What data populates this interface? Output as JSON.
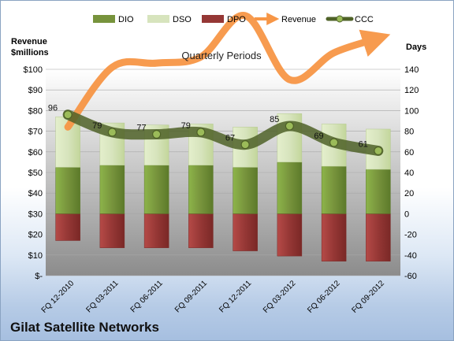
{
  "footer": {
    "company": "Gilat Satellite Networks"
  },
  "chart_data": {
    "type": "bar",
    "title": "Quarterly Periods",
    "left_axis_label": [
      "Revenue",
      "$millions"
    ],
    "right_axis_label": "Days",
    "left_ticks": [
      "$-",
      "$10",
      "$20",
      "$30",
      "$40",
      "$50",
      "$60",
      "$70",
      "$80",
      "$90",
      "$100"
    ],
    "left_ylim": [
      0,
      100
    ],
    "right_ylim": [
      -60,
      140
    ],
    "right_ticks": [
      "-60",
      "-40",
      "-20",
      "0",
      "20",
      "40",
      "60",
      "80",
      "100",
      "120",
      "140"
    ],
    "categories": [
      "FQ 12-2010",
      "FQ 03-2011",
      "FQ 06-2011",
      "FQ 09-2011",
      "FQ 12-2011",
      "FQ 03-2012",
      "FQ 06-2012",
      "FQ 09-2012"
    ],
    "legend_position": "top",
    "colors": {
      "DIO": "#77933c",
      "DSO": "#d7e4bd",
      "DPO": "#953735",
      "Revenue": "#f79646",
      "CCC": "#4f6228",
      "plot_bg_top": "#ffffff",
      "plot_bg_bottom": "#8c8c8c"
    },
    "series": [
      {
        "name": "DIO",
        "type": "bar",
        "axis": "right",
        "values": [
          45,
          47,
          47,
          47,
          45,
          50,
          46,
          43
        ]
      },
      {
        "name": "DSO",
        "type": "bar",
        "axis": "right",
        "values": [
          49,
          41,
          39,
          40,
          39,
          47,
          41,
          39
        ]
      },
      {
        "name": "DPO",
        "type": "bar",
        "axis": "right",
        "values": [
          -26,
          -33,
          -33,
          -33,
          -36,
          -41,
          -46,
          -46
        ]
      },
      {
        "name": "Revenue",
        "type": "line",
        "axis": "left",
        "values": [
          72,
          101,
          103,
          106,
          126,
          95,
          108,
          115
        ]
      },
      {
        "name": "CCC",
        "type": "line",
        "axis": "right",
        "values": [
          96,
          79,
          77,
          79,
          67,
          85,
          69,
          61
        ]
      }
    ],
    "ccc_labels": [
      "96",
      "79",
      "77",
      "79",
      "67",
      "85",
      "69",
      "61"
    ]
  }
}
